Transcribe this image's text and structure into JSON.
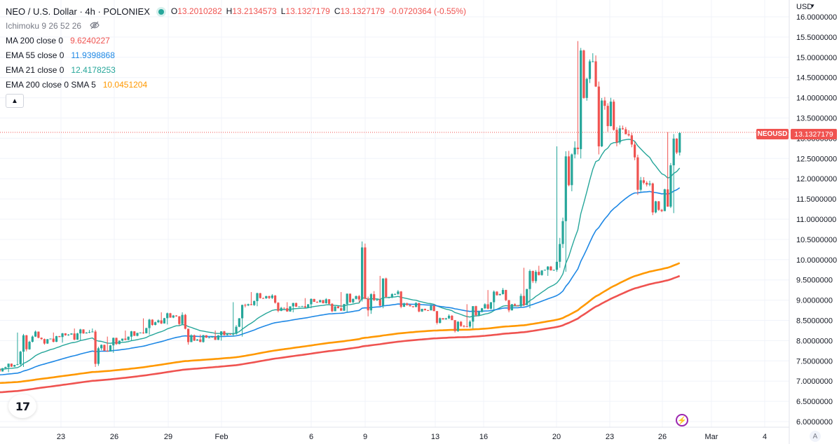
{
  "header": {
    "symbol_title": "NEO / U.S. Dollar · 4h · POLONIEX",
    "ohlc": [
      {
        "key": "O",
        "value": "13.2010282"
      },
      {
        "key": "H",
        "value": "13.2134573"
      },
      {
        "key": "L",
        "value": "13.1327179"
      },
      {
        "key": "C",
        "value": "13.1327179"
      }
    ],
    "change": "-0.0720364 (-0.55%)"
  },
  "indicators": [
    {
      "name": "Ichimoku 9 26 52 26",
      "value": "",
      "color": "#787b86",
      "hidden": true
    },
    {
      "name": "MA 200 close 0",
      "value": "9.6240227",
      "color": "#ef5350"
    },
    {
      "name": "EMA 55 close 0",
      "value": "11.9398868",
      "color": "#1e88e5"
    },
    {
      "name": "EMA 21 close 0",
      "value": "12.4178253",
      "color": "#26a69a"
    },
    {
      "name": "EMA 200 close 0 SMA 5",
      "value": "10.0451204",
      "color": "#ff9800"
    }
  ],
  "currency": "USD",
  "price_label": {
    "symbol": "NEOUSD",
    "value": "13.1327179"
  },
  "colors": {
    "up": "#26a69a",
    "down": "#ef5350",
    "tag": "#f05350",
    "grid": "#f0f3fa"
  },
  "icons": {
    "logo": "tradingview-logo-icon",
    "bolt": "lightning-icon",
    "eye": "eye-off-icon"
  },
  "chart_data": {
    "type": "candlestick",
    "y_axis_labels": [
      "16.0000000",
      "15.5000000",
      "15.0000000",
      "14.5000000",
      "14.0000000",
      "13.5000000",
      "13.0000000",
      "12.5000000",
      "12.0000000",
      "11.5000000",
      "11.0000000",
      "10.5000000",
      "10.0000000",
      "9.5000000",
      "9.0000000",
      "8.5000000",
      "8.0000000",
      "7.5000000",
      "7.0000000",
      "6.5000000",
      "6.0000000"
    ],
    "x_axis_labels": [
      "23",
      "26",
      "29",
      "Feb",
      "6",
      "9",
      "13",
      "16",
      "20",
      "23",
      "26",
      "Mar",
      "4"
    ],
    "ylim": [
      5.9,
      16.1
    ],
    "ohlc_daily": [
      {
        "d": "Jan 20",
        "o": 7.3,
        "h": 7.45,
        "l": 7.22,
        "c": 7.4
      },
      {
        "d": "Jan 21",
        "o": 7.4,
        "h": 8.2,
        "l": 7.35,
        "c": 8.1
      },
      {
        "d": "Jan 22",
        "o": 8.1,
        "h": 8.25,
        "l": 7.9,
        "c": 8.05
      },
      {
        "d": "Jan 23",
        "o": 8.05,
        "h": 8.2,
        "l": 7.95,
        "c": 8.15
      },
      {
        "d": "Jan 24",
        "o": 8.15,
        "h": 8.3,
        "l": 8.0,
        "c": 8.2
      },
      {
        "d": "Jan 25",
        "o": 8.2,
        "h": 8.3,
        "l": 7.35,
        "c": 7.75
      },
      {
        "d": "Jan 26",
        "o": 7.75,
        "h": 8.1,
        "l": 7.7,
        "c": 8.05
      },
      {
        "d": "Jan 27",
        "o": 8.05,
        "h": 8.25,
        "l": 8.0,
        "c": 8.2
      },
      {
        "d": "Jan 28",
        "o": 8.2,
        "h": 8.55,
        "l": 8.15,
        "c": 8.5
      },
      {
        "d": "Jan 29",
        "o": 8.5,
        "h": 8.7,
        "l": 8.4,
        "c": 8.6
      },
      {
        "d": "Jan 30",
        "o": 8.6,
        "h": 8.7,
        "l": 7.9,
        "c": 8.0
      },
      {
        "d": "Jan 31",
        "o": 8.0,
        "h": 8.15,
        "l": 7.95,
        "c": 8.1
      },
      {
        "d": "Feb 1",
        "o": 8.1,
        "h": 8.25,
        "l": 8.0,
        "c": 8.15
      },
      {
        "d": "Feb 2",
        "o": 8.15,
        "h": 8.95,
        "l": 8.1,
        "c": 8.9
      },
      {
        "d": "Feb 3",
        "o": 8.9,
        "h": 9.2,
        "l": 8.85,
        "c": 9.1
      },
      {
        "d": "Feb 4",
        "o": 9.1,
        "h": 9.15,
        "l": 8.7,
        "c": 8.8
      },
      {
        "d": "Feb 5",
        "o": 8.8,
        "h": 8.95,
        "l": 8.7,
        "c": 8.85
      },
      {
        "d": "Feb 6",
        "o": 8.85,
        "h": 9.05,
        "l": 8.8,
        "c": 9.0
      },
      {
        "d": "Feb 7",
        "o": 9.0,
        "h": 9.05,
        "l": 8.7,
        "c": 8.8
      },
      {
        "d": "Feb 8",
        "o": 8.8,
        "h": 9.2,
        "l": 8.7,
        "c": 9.1
      },
      {
        "d": "Feb 9",
        "o": 9.1,
        "h": 10.45,
        "l": 8.6,
        "c": 9.0
      },
      {
        "d": "Feb 10",
        "o": 9.0,
        "h": 9.6,
        "l": 8.8,
        "c": 9.15
      },
      {
        "d": "Feb 11",
        "o": 9.15,
        "h": 9.25,
        "l": 8.8,
        "c": 8.85
      },
      {
        "d": "Feb 12",
        "o": 8.85,
        "h": 8.95,
        "l": 8.7,
        "c": 8.75
      },
      {
        "d": "Feb 13",
        "o": 8.75,
        "h": 8.9,
        "l": 8.4,
        "c": 8.55
      },
      {
        "d": "Feb 14",
        "o": 8.55,
        "h": 8.65,
        "l": 8.2,
        "c": 8.35
      },
      {
        "d": "Feb 15",
        "o": 8.35,
        "h": 8.9,
        "l": 8.3,
        "c": 8.8
      },
      {
        "d": "Feb 16",
        "o": 8.8,
        "h": 9.25,
        "l": 8.75,
        "c": 9.15
      },
      {
        "d": "Feb 17",
        "o": 9.15,
        "h": 9.3,
        "l": 8.7,
        "c": 8.85
      },
      {
        "d": "Feb 18",
        "o": 8.85,
        "h": 9.8,
        "l": 8.8,
        "c": 9.7
      },
      {
        "d": "Feb 19",
        "o": 9.7,
        "h": 9.85,
        "l": 9.6,
        "c": 9.75
      },
      {
        "d": "Feb 20",
        "o": 9.75,
        "h": 12.8,
        "l": 9.7,
        "c": 12.6
      },
      {
        "d": "Feb 21",
        "o": 12.6,
        "h": 15.4,
        "l": 12.5,
        "c": 14.9
      },
      {
        "d": "Feb 22",
        "o": 14.9,
        "h": 15.1,
        "l": 12.6,
        "c": 13.3
      },
      {
        "d": "Feb 23",
        "o": 13.3,
        "h": 14.0,
        "l": 12.8,
        "c": 13.1
      },
      {
        "d": "Feb 24",
        "o": 13.1,
        "h": 13.2,
        "l": 11.6,
        "c": 11.9
      },
      {
        "d": "Feb 25",
        "o": 11.9,
        "h": 11.95,
        "l": 11.1,
        "c": 11.2
      },
      {
        "d": "Feb 26",
        "o": 11.2,
        "h": 13.15,
        "l": 11.15,
        "c": 13.13
      }
    ]
  }
}
